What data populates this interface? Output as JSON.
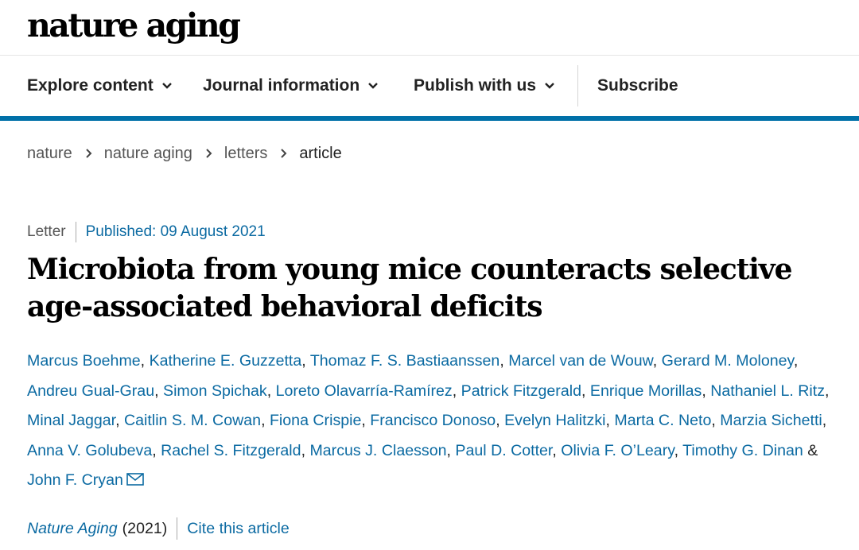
{
  "site": {
    "logo_text": "nature aging"
  },
  "nav": {
    "items": [
      {
        "label": "Explore content",
        "has_dropdown": true
      },
      {
        "label": "Journal information",
        "has_dropdown": true
      },
      {
        "label": "Publish with us",
        "has_dropdown": true
      },
      {
        "label": "Subscribe",
        "has_dropdown": false
      }
    ]
  },
  "breadcrumb": [
    "nature",
    "nature aging",
    "letters",
    "article"
  ],
  "article": {
    "type": "Letter",
    "published": "Published: 09 August 2021",
    "title_line1": "Microbiota from young mice counteracts selective",
    "title_line2": "age-associated behavioral deficits",
    "authors": [
      "Marcus Boehme",
      "Katherine E. Guzzetta",
      "Thomaz F. S. Bastiaanssen",
      "Marcel van de Wouw",
      "Gerard M. Moloney",
      "Andreu Gual-Grau",
      "Simon Spichak",
      "Loreto Olavarría-Ramírez",
      "Patrick Fitzgerald",
      "Enrique Morillas",
      "Nathaniel L. Ritz",
      "Minal Jaggar",
      "Caitlin S. M. Cowan",
      "Fiona Crispie",
      "Francisco Donoso",
      "Evelyn Halitzki",
      "Marta C. Neto",
      "Marzia Sichetti",
      "Anna V. Golubeva",
      "Rachel S. Fitzgerald",
      "Marcus J. Claesson",
      "Paul D. Cotter",
      "Olivia F. O’Leary",
      "Timothy G. Dinan",
      "John F. Cryan"
    ],
    "author_separator": ", ",
    "last_author_separator": " & ",
    "journal": "Nature Aging",
    "year": "(2021)",
    "cite_label": "Cite this article"
  },
  "colors": {
    "link": "#0b6aa2",
    "accent_rule": "#0070a8",
    "text": "#222222"
  },
  "icons": {
    "dropdown": "chevron-down-icon",
    "breadcrumb_separator": "chevron-right-icon",
    "corresponding_author": "mail-icon"
  }
}
